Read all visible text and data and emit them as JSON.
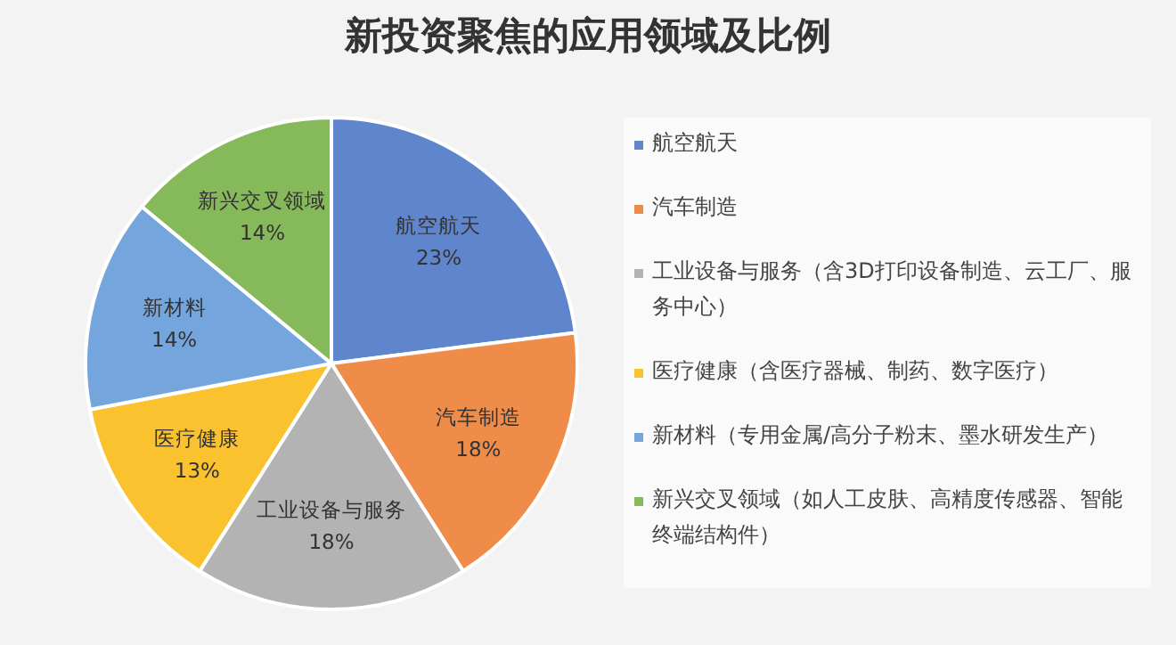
{
  "chart_data": {
    "type": "pie",
    "title": "新投资聚焦的应用领域及比例",
    "categories": [
      "航空航天",
      "汽车制造",
      "工业设备与服务（含3D打印设备制造、云工厂、服务中心）",
      "医疗健康（含医疗器械、制药、数字医疗）",
      "新材料（专用金属/高分子粉末、墨水研发生产）",
      "新兴交叉领域（如人工皮肤、高精度传感器、智能终端结构件）"
    ],
    "values": [
      23,
      18,
      18,
      13,
      14,
      14
    ],
    "colors": [
      "#5f86cc",
      "#ef8c4a",
      "#b3b3b3",
      "#fbc22f",
      "#74a5dd",
      "#86b95a"
    ],
    "value_labels": [
      "航空航天\n23%",
      "汽车制造\n18%",
      "工业设备与服务\n18%",
      "医疗健康\n13%",
      "新材料\n14%",
      "新兴交叉领域\n14%"
    ],
    "legend": "right"
  }
}
